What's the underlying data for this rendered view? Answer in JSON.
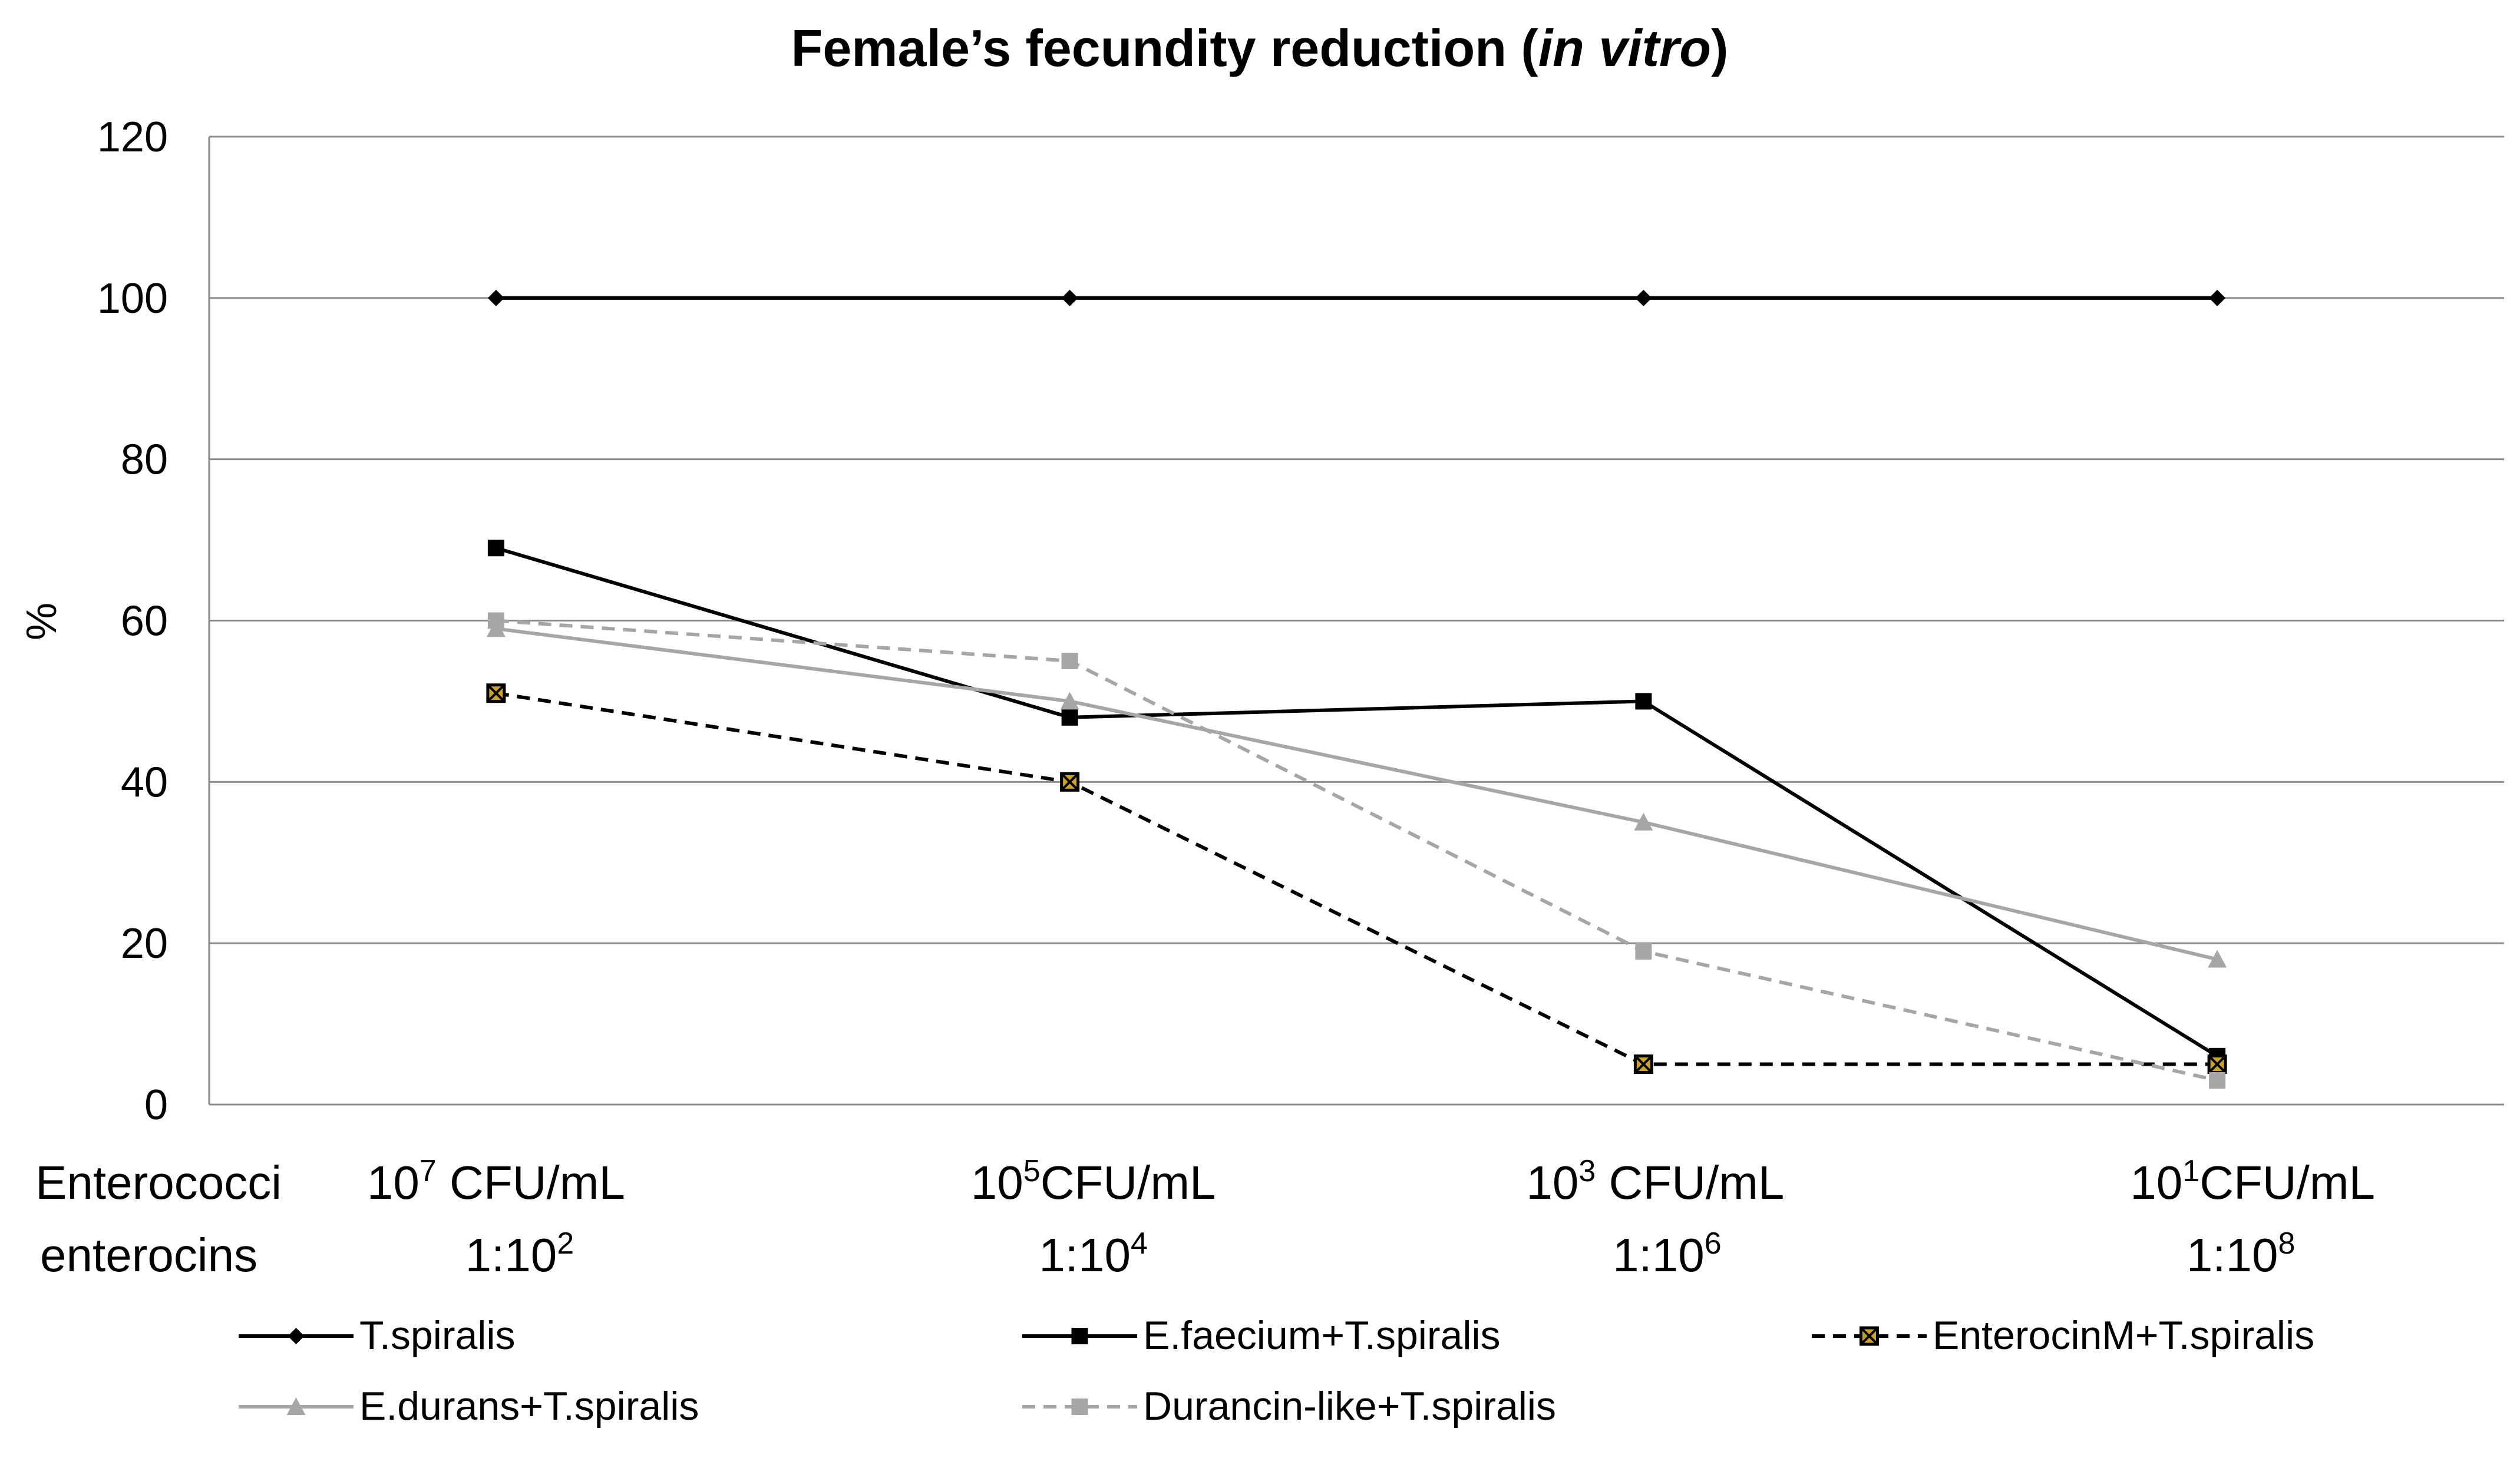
{
  "chart_data": {
    "type": "line",
    "title": "Female’s fecundity reduction (",
    "title_italic": "in vitro",
    "title_end": ")",
    "ylabel": "%",
    "ylim": [
      0,
      120
    ],
    "yticks": [
      0,
      20,
      40,
      60,
      80,
      100,
      120
    ],
    "row_labels": [
      "Enterococci",
      "enterocins"
    ],
    "categories": [
      {
        "cfu_base": "10",
        "cfu_exp": "7",
        "cfu_unit": " CFU/mL",
        "ratio_base": "1:10",
        "ratio_exp": "2"
      },
      {
        "cfu_base": "10",
        "cfu_exp": "5",
        "cfu_unit": "CFU/mL",
        "ratio_base": "1:10",
        "ratio_exp": "4"
      },
      {
        "cfu_base": "10",
        "cfu_exp": "3",
        "cfu_unit": " CFU/mL",
        "ratio_base": "1:10",
        "ratio_exp": "6"
      },
      {
        "cfu_base": "10",
        "cfu_exp": "1",
        "cfu_unit": "CFU/mL",
        "ratio_base": "1:10",
        "ratio_exp": "8"
      }
    ],
    "series": [
      {
        "name": "T.spiralis",
        "values": [
          100,
          100,
          100,
          100
        ],
        "color": "#000000",
        "dash": "solid",
        "marker": "diamond"
      },
      {
        "name": "E.faecium+T.spiralis",
        "values": [
          69,
          48,
          50,
          6
        ],
        "color": "#000000",
        "dash": "solid",
        "marker": "square"
      },
      {
        "name": "EnterocinM+T.spiralis",
        "values": [
          51,
          40,
          5,
          5
        ],
        "color": "#000000",
        "dash": "dashed",
        "marker": "xsquare"
      },
      {
        "name": "E.durans+T.spiralis",
        "values": [
          59,
          50,
          35,
          18
        ],
        "color": "#a6a6a6",
        "dash": "solid",
        "marker": "triangle"
      },
      {
        "name": "Durancin-like+T.spiralis",
        "values": [
          60,
          55,
          19,
          3
        ],
        "color": "#a6a6a6",
        "dash": "dashed",
        "marker": "square"
      }
    ],
    "grid": true,
    "legend_position": "bottom"
  }
}
